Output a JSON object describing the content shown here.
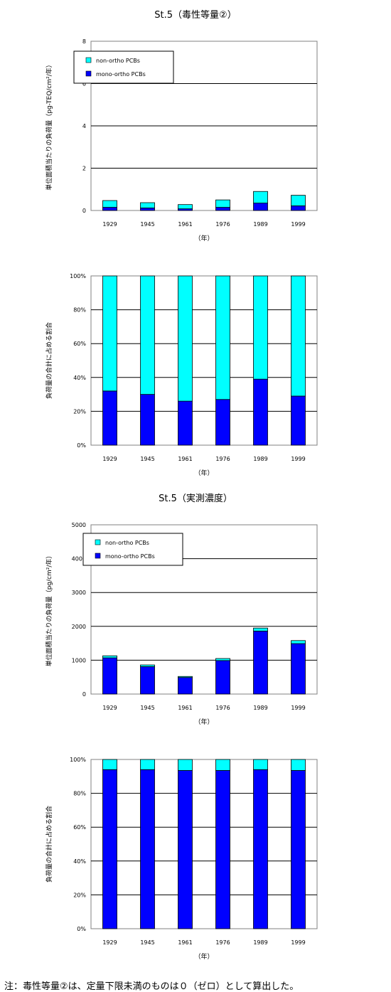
{
  "titles": {
    "toxic": "St.5（毒性等量②）",
    "measured": "St.5（実測濃度）"
  },
  "note": "注：毒性等量②は、定量下限未満のものは０（ゼロ）として算出した。",
  "colors": {
    "non_ortho": "#00ffff",
    "mono_ortho": "#0000ff"
  },
  "chart_data": [
    {
      "type": "bar",
      "stacked": true,
      "categories": [
        "1929",
        "1945",
        "1961",
        "1976",
        "1989",
        "1999"
      ],
      "series": [
        {
          "name": "mono-ortho PCBs",
          "color": "#0000ff",
          "values": [
            0.15,
            0.12,
            0.08,
            0.15,
            0.35,
            0.22
          ]
        },
        {
          "name": "non-ortho PCBs",
          "color": "#00ffff",
          "values": [
            0.32,
            0.25,
            0.2,
            0.35,
            0.55,
            0.5
          ]
        }
      ],
      "ylabel": "単位面積当たりの負荷量（pg-TEQ/cm²/年）",
      "xlabel": "（年）",
      "ylim": [
        0,
        8
      ],
      "yticks": [
        "0",
        "2",
        "4",
        "6",
        "8"
      ],
      "grid": true,
      "legend": "top-left"
    },
    {
      "type": "bar",
      "stacked": true,
      "percent": true,
      "categories": [
        "1929",
        "1945",
        "1961",
        "1976",
        "1989",
        "1999"
      ],
      "series": [
        {
          "name": "mono-ortho PCBs",
          "color": "#0000ff",
          "values": [
            32,
            30,
            26,
            27,
            39,
            29
          ]
        },
        {
          "name": "non-ortho PCBs",
          "color": "#00ffff",
          "values": [
            68,
            70,
            74,
            73,
            61,
            71
          ]
        }
      ],
      "ylabel": "負荷量の合計に占める割合",
      "xlabel": "（年）",
      "ylim": [
        0,
        100
      ],
      "yticks": [
        "0%",
        "20%",
        "40%",
        "60%",
        "80%",
        "100%"
      ],
      "grid": true
    },
    {
      "type": "bar",
      "stacked": true,
      "categories": [
        "1929",
        "1945",
        "1961",
        "1976",
        "1989",
        "1999"
      ],
      "series": [
        {
          "name": "mono-ortho PCBs",
          "color": "#0000ff",
          "values": [
            1070,
            810,
            490,
            990,
            1860,
            1490
          ]
        },
        {
          "name": "non-ortho PCBs",
          "color": "#00ffff",
          "values": [
            60,
            50,
            30,
            60,
            90,
            90
          ]
        }
      ],
      "ylabel": "単位面積当たりの負荷量（pg/cm²/年）",
      "xlabel": "（年）",
      "ylim": [
        0,
        5000
      ],
      "yticks": [
        "0",
        "1000",
        "2000",
        "3000",
        "4000",
        "5000"
      ],
      "grid": true,
      "legend": "top-left"
    },
    {
      "type": "bar",
      "stacked": true,
      "percent": true,
      "categories": [
        "1929",
        "1945",
        "1961",
        "1976",
        "1989",
        "1999"
      ],
      "series": [
        {
          "name": "mono-ortho PCBs",
          "color": "#0000ff",
          "values": [
            94,
            94,
            93.5,
            93.5,
            94,
            93.5
          ]
        },
        {
          "name": "non-ortho PCBs",
          "color": "#00ffff",
          "values": [
            6,
            6,
            6.5,
            6.5,
            6,
            6.5
          ]
        }
      ],
      "ylabel": "負荷量の合計に占める割合",
      "xlabel": "（年）",
      "ylim": [
        0,
        100
      ],
      "yticks": [
        "0%",
        "20%",
        "40%",
        "60%",
        "80%",
        "100%"
      ],
      "grid": true
    }
  ]
}
